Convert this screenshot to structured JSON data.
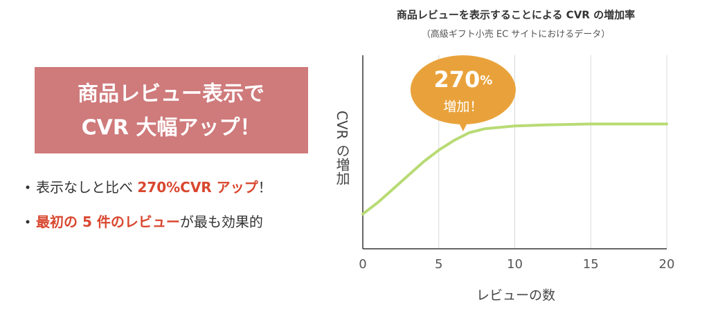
{
  "heading": {
    "lines": [
      "商品レビュー表示で",
      "CVR 大幅アップ！"
    ]
  },
  "bullets": [
    {
      "before": "表示なしと比べ ",
      "highlight": "270%CVR アップ",
      "after": "！"
    },
    {
      "before": "",
      "highlight": "最初の 5 件のレビュー",
      "after": "が最も効果的"
    }
  ],
  "chart_data": {
    "type": "line",
    "title": "商品レビューを表示することによる CVR の増加率",
    "subtitle": "（高級ギフト小売 EC サイトにおけるデータ）",
    "x_label": "レビューの数",
    "y_label": "CVR の増加",
    "x": [
      0,
      1,
      2,
      3,
      4,
      5,
      6,
      7,
      8,
      10,
      12,
      15,
      20
    ],
    "series": [
      {
        "name": "CVR の増加",
        "color": "#b8db74",
        "values": [
          18,
          24,
          31,
          38,
          45,
          51,
          56,
          60,
          62,
          63.5,
          64,
          64.5,
          64.5
        ]
      }
    ],
    "xlim": [
      0,
      20
    ],
    "xticks": [
      0,
      5,
      10,
      15,
      20
    ],
    "ylim": [
      0,
      100
    ],
    "grid": true,
    "annotation": {
      "number": "270",
      "unit": "%",
      "text": "増加！",
      "x": 6.6,
      "color": "#e9a23b"
    }
  }
}
